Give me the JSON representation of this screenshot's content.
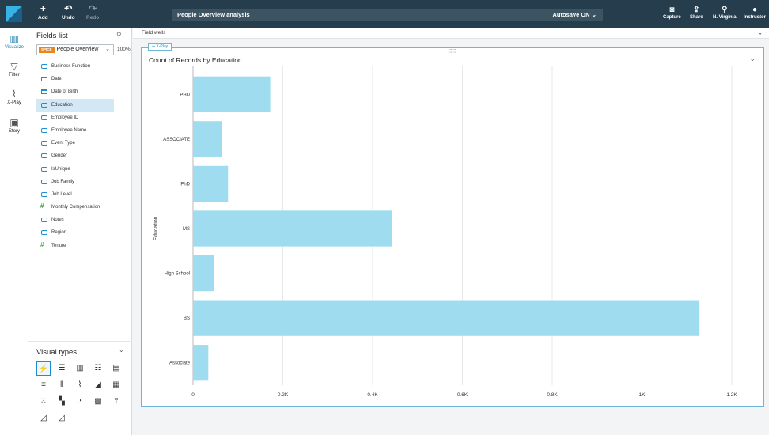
{
  "topbar": {
    "add_label": "Add",
    "undo_label": "Undo",
    "redo_label": "Redo",
    "analysis_name": "People Overview analysis",
    "autosave": "Autosave ON",
    "capture_label": "Capture",
    "share_label": "Share",
    "region_label": "N. Virginia",
    "user_label": "Instructor"
  },
  "rail": {
    "visualize": "Visualize",
    "filter": "Filter",
    "xplay": "X-Play",
    "story": "Story"
  },
  "fields_panel": {
    "title": "Fields list",
    "dataset_badge": "SPICE",
    "dataset_name": "People Overview",
    "dataset_pct": "100%",
    "fields": [
      {
        "label": "Business Function",
        "type": "dim"
      },
      {
        "label": "Date",
        "type": "date"
      },
      {
        "label": "Date of Birth",
        "type": "date"
      },
      {
        "label": "Education",
        "type": "dim",
        "selected": true
      },
      {
        "label": "Employee ID",
        "type": "dim"
      },
      {
        "label": "Employee Name",
        "type": "dim"
      },
      {
        "label": "Event Type",
        "type": "dim"
      },
      {
        "label": "Gender",
        "type": "dim"
      },
      {
        "label": "IsUnique",
        "type": "dim"
      },
      {
        "label": "Job Family",
        "type": "dim"
      },
      {
        "label": "Job Level",
        "type": "dim"
      },
      {
        "label": "Monthly Compensation",
        "type": "num"
      },
      {
        "label": "Notes",
        "type": "dim"
      },
      {
        "label": "Region",
        "type": "dim"
      },
      {
        "label": "Tenure",
        "type": "num"
      }
    ],
    "visual_types_title": "Visual types"
  },
  "canvas": {
    "field_wells_label": "Field wells",
    "xplay_tag": "X-Play"
  },
  "colors": {
    "bar": "#9fdcf0",
    "topbar": "#253d4c",
    "accent": "#1d8dd0"
  },
  "chart_data": {
    "type": "bar",
    "orientation": "horizontal",
    "title": "Count of Records by Education",
    "ylabel": "Education",
    "xlabel": "",
    "categories": [
      "PHD",
      "ASSOCIATE",
      "PhD",
      "MS",
      "High School",
      "BS",
      "Associate"
    ],
    "values": [
      172,
      65,
      78,
      443,
      47,
      1128,
      34
    ],
    "xlim": [
      0,
      1200
    ],
    "xticks": [
      0,
      200,
      400,
      600,
      800,
      1000,
      1200
    ],
    "xtick_labels": [
      "0",
      "0.2K",
      "0.4K",
      "0.6K",
      "0.8K",
      "1K",
      "1.2K"
    ],
    "grid": true
  }
}
